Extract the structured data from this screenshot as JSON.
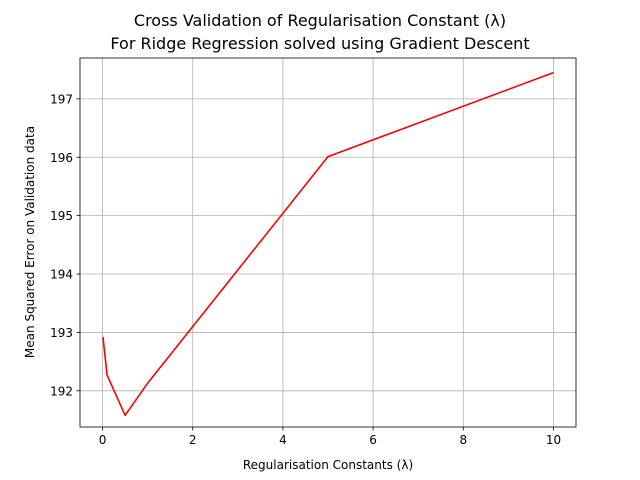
{
  "chart_data": {
    "type": "line",
    "title_line1": "Cross Validation of Regularisation Constant (λ)",
    "title_line2": "For Ridge Regression solved using Gradient Descent",
    "xlabel": "Regularisation Constants (λ)",
    "ylabel": "Mean Squared Error on Validation data",
    "xlim": [
      -0.5,
      10.5
    ],
    "ylim": [
      191.38,
      197.7
    ],
    "xticks": [
      0,
      2,
      4,
      6,
      8,
      10
    ],
    "yticks": [
      192,
      193,
      194,
      195,
      196,
      197
    ],
    "grid": true,
    "series": [
      {
        "color": "#ff0000",
        "x": [
          0.01,
          0.1,
          0.5,
          1,
          5,
          10
        ],
        "y": [
          192.92,
          192.27,
          191.58,
          192.13,
          196.01,
          197.45
        ]
      }
    ]
  }
}
